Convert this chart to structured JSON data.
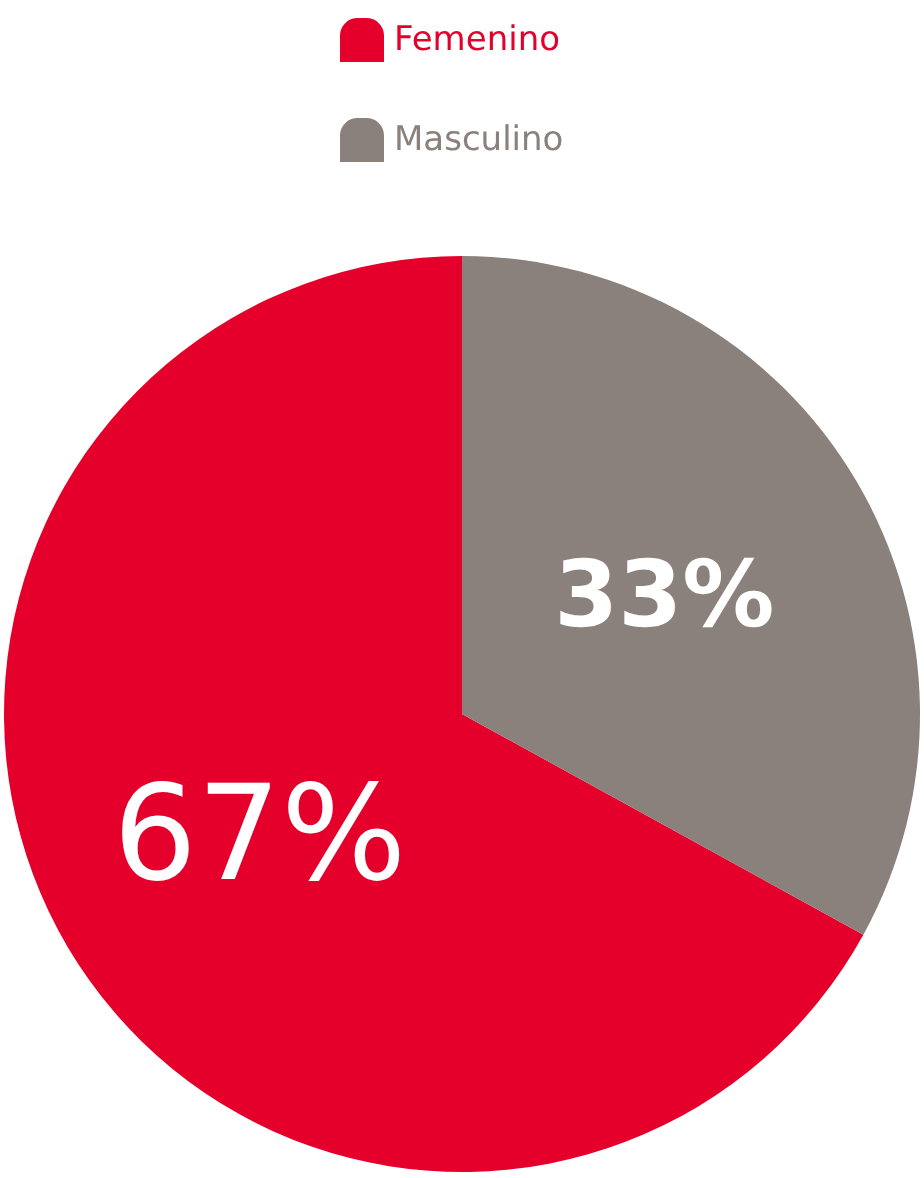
{
  "chart_data": {
    "type": "pie",
    "categories": [
      "Femenino",
      "Masculino"
    ],
    "values": [
      67,
      33
    ],
    "colors": [
      "#e4002b",
      "#8a807c"
    ],
    "value_labels": [
      "67%",
      "33%"
    ],
    "legend": "top"
  }
}
